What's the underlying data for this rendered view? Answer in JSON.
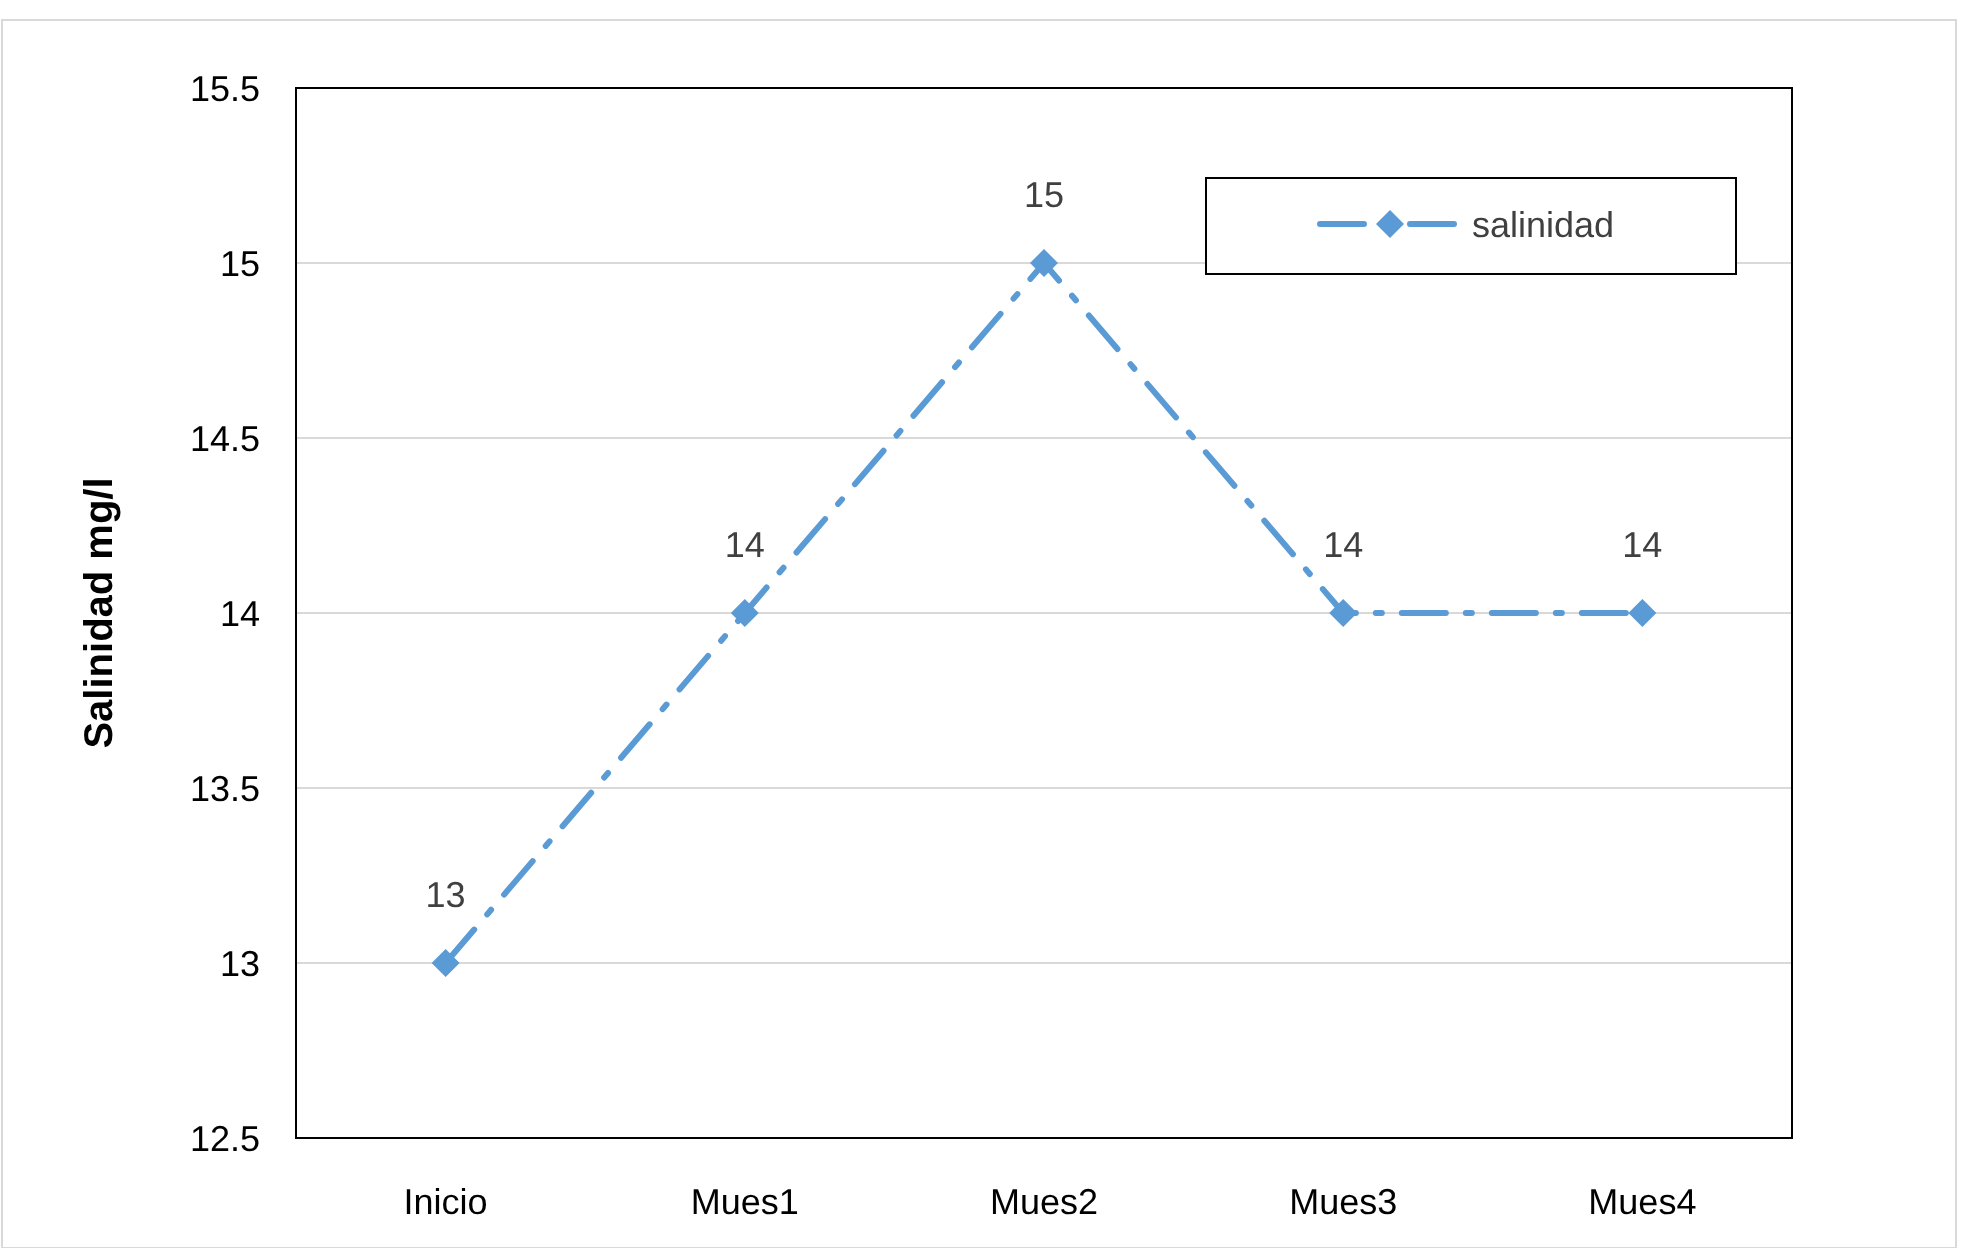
{
  "chart_data": {
    "type": "line",
    "ylabel": "Salinidad mg/l",
    "categories": [
      "Inicio",
      "Mues1",
      "Mues2",
      "Mues3",
      "Mues4"
    ],
    "series": [
      {
        "name": "salinidad",
        "color": "#5b9bd5",
        "values": [
          13,
          14,
          15,
          14,
          14
        ]
      }
    ],
    "ylim": [
      12.5,
      15.5
    ],
    "yticks": [
      12.5,
      13,
      13.5,
      14,
      14.5,
      15,
      15.5
    ],
    "grid": "y",
    "legend": "top right",
    "marker": "diamond",
    "line_style": "dashed",
    "data_labels": true
  }
}
